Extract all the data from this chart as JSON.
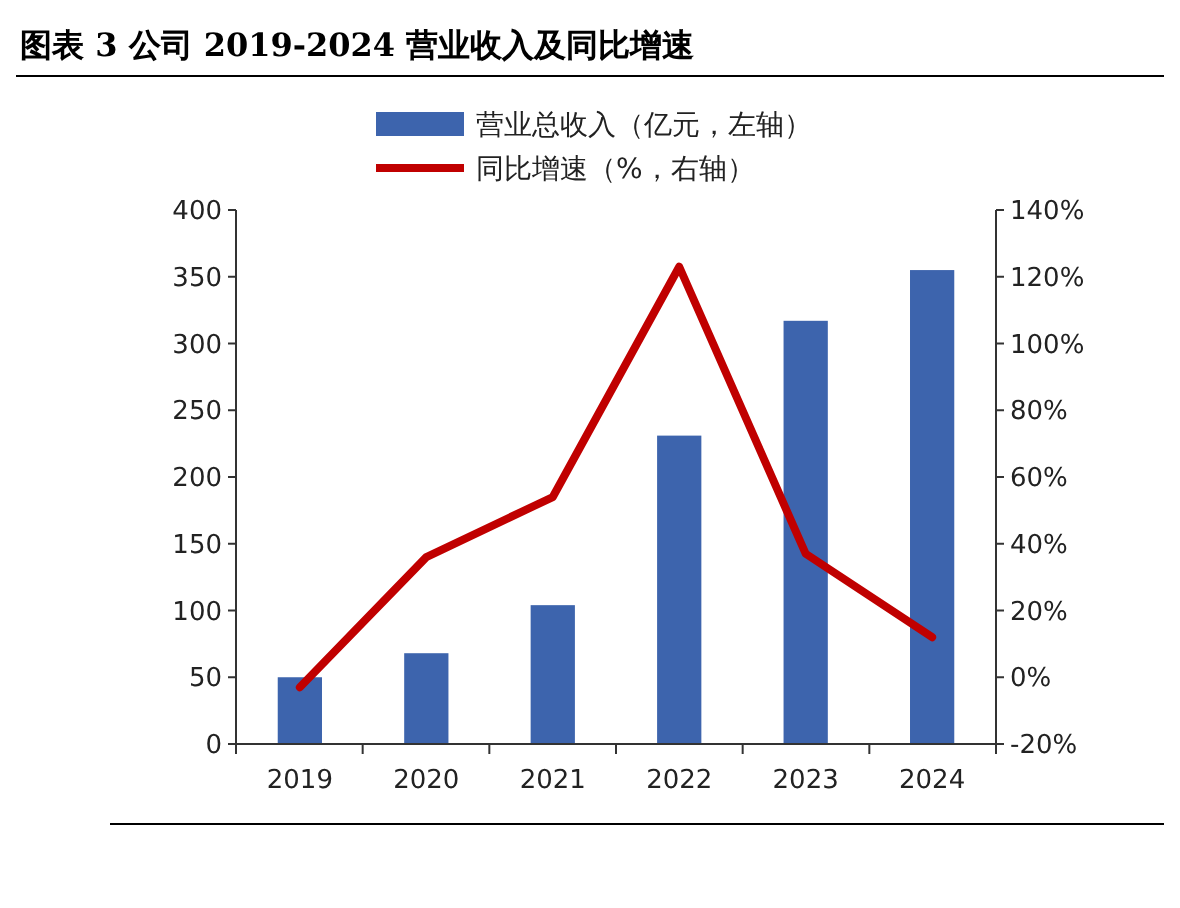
{
  "chart_data": {
    "type": "bar",
    "title": "图表 3 公司 2019-2024 营业收入及同比增速",
    "categories": [
      "2019",
      "2020",
      "2021",
      "2022",
      "2023",
      "2024"
    ],
    "series": [
      {
        "name": "营业总收入（亿元，左轴）",
        "color": "#3d64ad",
        "values": [
          50,
          68,
          104,
          231,
          317,
          355
        ]
      },
      {
        "name": "同比增速（%，右轴）",
        "type": "line",
        "axis": "y2",
        "color": "#c00000",
        "values": [
          -3,
          36,
          54,
          123,
          37,
          12
        ]
      }
    ],
    "ylim": [
      0,
      400
    ],
    "yticks": [
      0,
      50,
      100,
      150,
      200,
      250,
      300,
      350,
      400
    ],
    "y2lim": [
      -20,
      140
    ],
    "y2ticks": [
      {
        "value": -20,
        "label": "-20%"
      },
      {
        "value": 0,
        "label": "0%"
      },
      {
        "value": 20,
        "label": "20%"
      },
      {
        "value": 40,
        "label": "40%"
      },
      {
        "value": 60,
        "label": "60%"
      },
      {
        "value": 80,
        "label": "80%"
      },
      {
        "value": 100,
        "label": "100%"
      },
      {
        "value": 120,
        "label": "120%"
      },
      {
        "value": 140,
        "label": "140%"
      }
    ],
    "legend": "top",
    "marker": "none",
    "line_style": "solid"
  }
}
